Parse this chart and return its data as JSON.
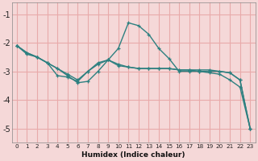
{
  "title": "",
  "xlabel": "Humidex (Indice chaleur)",
  "ylabel": "",
  "bg_color": "#f5d8d8",
  "plot_bg_color": "#f5d8d8",
  "line_color": "#2d8080",
  "grid_color": "#e8aaaa",
  "xlim": [
    -0.5,
    23.5
  ],
  "ylim": [
    -5.5,
    -0.6
  ],
  "yticks": [
    -5,
    -4,
    -3,
    -2,
    -1
  ],
  "xticks": [
    0,
    1,
    2,
    3,
    4,
    5,
    6,
    7,
    8,
    9,
    10,
    11,
    12,
    13,
    14,
    15,
    16,
    17,
    18,
    19,
    20,
    21,
    22,
    23
  ],
  "series": [
    {
      "x": [
        0,
        1,
        2,
        3,
        4,
        5,
        6,
        7,
        8,
        9,
        10,
        11,
        12,
        13,
        14,
        15,
        16,
        17,
        18,
        19,
        20,
        21,
        22,
        23
      ],
      "y": [
        -2.1,
        -2.4,
        -2.5,
        -2.7,
        -2.9,
        -3.1,
        -3.3,
        -3.0,
        -2.75,
        -2.6,
        -2.8,
        -2.85,
        -2.9,
        -2.9,
        -2.9,
        -2.9,
        -2.95,
        -2.95,
        -3.0,
        -3.0,
        -3.0,
        -3.05,
        -3.3,
        -5.0
      ]
    },
    {
      "x": [
        0,
        1,
        2,
        3,
        4,
        5,
        6,
        7,
        8,
        9,
        10,
        11,
        12,
        13,
        14,
        15,
        16,
        17,
        18,
        19,
        20,
        21,
        22,
        23
      ],
      "y": [
        -2.1,
        -2.35,
        -2.5,
        -2.7,
        -2.9,
        -3.15,
        -3.4,
        -3.35,
        -3.0,
        -2.6,
        -2.2,
        -1.3,
        -1.4,
        -1.7,
        -2.2,
        -2.55,
        -3.0,
        -3.0,
        -3.0,
        -3.05,
        -3.1,
        -3.3,
        -3.55,
        -5.0
      ]
    },
    {
      "x": [
        0,
        1,
        2,
        3,
        4,
        5,
        6,
        7,
        8,
        9,
        10,
        11,
        12,
        13,
        14,
        15,
        16,
        17,
        18,
        19,
        20,
        21,
        22,
        23
      ],
      "y": [
        -2.1,
        -2.35,
        -2.5,
        -2.7,
        -3.15,
        -3.2,
        -3.35,
        -3.0,
        -2.7,
        -2.6,
        -2.75,
        -2.85,
        -2.9,
        -2.9,
        -2.9,
        -2.9,
        -2.95,
        -2.95,
        -2.95,
        -2.95,
        -3.0,
        -3.05,
        -3.3,
        -5.0
      ]
    }
  ]
}
